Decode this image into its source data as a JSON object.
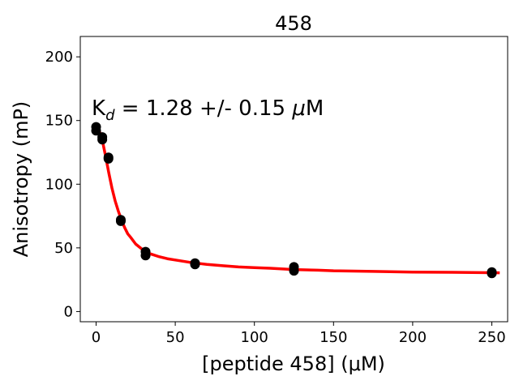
{
  "chart_data": {
    "type": "scatter",
    "title": "458",
    "xlabel": "[peptide 458] (μM)",
    "ylabel": "Anisotropy (mP)",
    "xlim": [
      -10,
      260
    ],
    "ylim": [
      -8,
      216
    ],
    "xticks": [
      0,
      50,
      100,
      150,
      200,
      250
    ],
    "yticks": [
      0,
      50,
      100,
      150,
      200
    ],
    "annotation": {
      "prefix": "K",
      "subscript": "d",
      "text": " = 1.28 +/- 0.15 ",
      "mu": "μ",
      "unit": "M"
    },
    "grid": false,
    "legend": "none",
    "series": [
      {
        "kind": "points",
        "color": "#000000",
        "x": [
          0,
          0,
          3.9,
          3.9,
          7.8,
          7.8,
          15.6,
          15.6,
          31.25,
          31.25,
          62.5,
          62.5,
          125,
          125,
          250,
          250
        ],
        "y": [
          145,
          142,
          137,
          135,
          121,
          120,
          72,
          71,
          47,
          44,
          38,
          37,
          35,
          32,
          31,
          30
        ]
      },
      {
        "kind": "fit",
        "color": "#ff0000",
        "x": [
          0,
          2,
          4,
          6,
          8,
          10,
          12,
          14,
          16,
          18,
          20,
          22,
          25,
          28,
          30,
          32,
          35,
          40,
          45,
          50,
          60,
          70,
          80,
          90,
          100,
          110,
          125,
          140,
          150,
          175,
          200,
          225,
          250,
          255
        ],
        "y": [
          146,
          142,
          134,
          122,
          109,
          97,
          87,
          79,
          72,
          66,
          61,
          58,
          53,
          50,
          48,
          46.5,
          45,
          43,
          41.5,
          40.5,
          38.5,
          37,
          36,
          35,
          34.5,
          34,
          33,
          32.5,
          32,
          31.5,
          31,
          30.8,
          30.5,
          30.4
        ]
      }
    ]
  }
}
